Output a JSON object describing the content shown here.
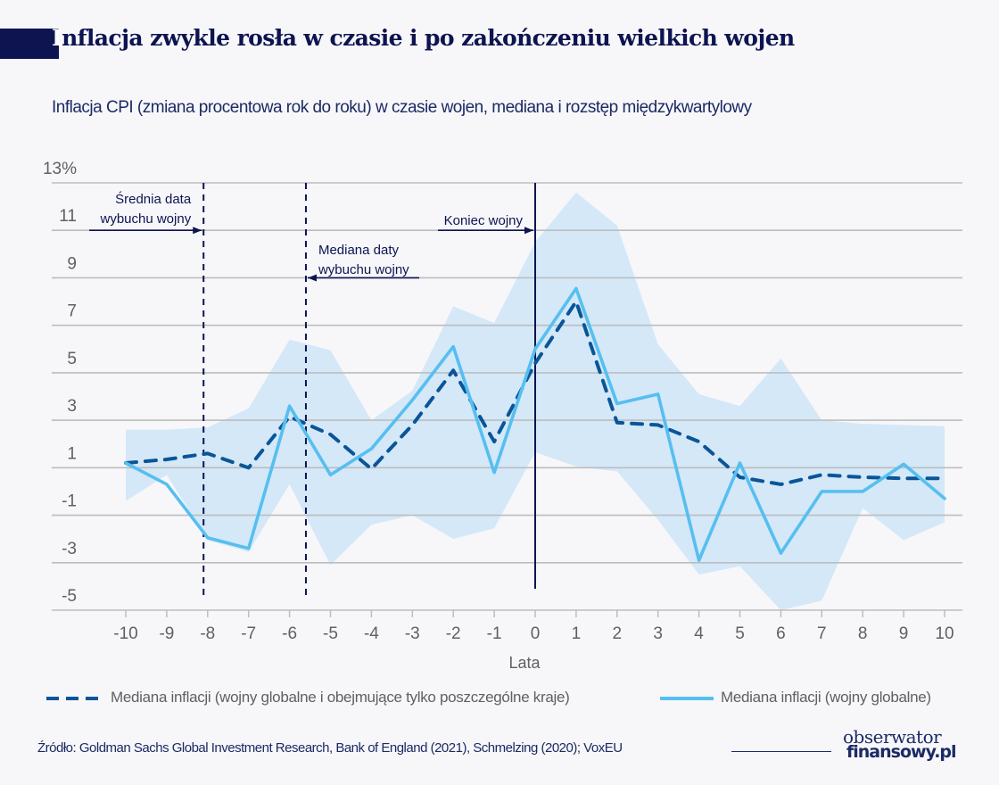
{
  "header": {
    "title_first_letter": "I",
    "title_rest": "nflacja zwykle rosła w czasie i po zakończeniu wielkich wojen",
    "subtitle": "Inflacja CPI (zmiana procentowa rok do roku) w czasie wojen, mediana i rozstęp międzykwartylowy"
  },
  "colors": {
    "title": "#0d1450",
    "band": "#d4e8f8",
    "solid_line": "#56bff0",
    "dashed_line": "#0a5598",
    "vertical_markers": "#0d1450",
    "grid": "#bdbdbd",
    "axis_text": "#606060"
  },
  "chart_data": {
    "type": "line",
    "title": "Inflacja zwykle rosła w czasie i po zakończeniu wielkich wojen",
    "subtitle": "Inflacja CPI (zmiana procentowa rok do roku) w czasie wojen, mediana i rozstęp międzykwartylowy",
    "xlabel": "Lata",
    "ylabel": "",
    "x": [
      -10,
      -9,
      -8,
      -7,
      -6,
      -5,
      -4,
      -3,
      -2,
      -1,
      0,
      1,
      2,
      3,
      4,
      5,
      6,
      7,
      8,
      9,
      10
    ],
    "x_tick_labels": [
      "-10",
      "-9",
      "-8",
      "-7",
      "-6",
      "-5",
      "-4",
      "-3",
      "-2",
      "-1",
      "0",
      "1",
      "2",
      "3",
      "4",
      "5",
      "6",
      "7",
      "8",
      "9",
      "10"
    ],
    "ylim": [
      -5,
      13
    ],
    "y_ticks": [
      13,
      11,
      9,
      7,
      5,
      3,
      1,
      -1,
      -3,
      -5
    ],
    "y_tick_labels": [
      "13%",
      "11",
      "9",
      "7",
      "5",
      "3",
      "1",
      "-1",
      "-3",
      "-5"
    ],
    "grid": true,
    "series": [
      {
        "name": "Mediana inflacji (wojny globalne i obejmujące tylko poszczególne kraje)",
        "style": "dashed",
        "values": [
          1.2,
          1.35,
          1.6,
          1.0,
          3.15,
          2.4,
          0.95,
          2.8,
          5.1,
          2.1,
          5.4,
          8.0,
          2.9,
          2.8,
          2.1,
          0.6,
          0.3,
          0.7,
          0.6,
          0.55,
          0.55
        ]
      },
      {
        "name": "Mediana inflacji (wojny globalne)",
        "style": "solid",
        "values": [
          1.2,
          0.3,
          -1.95,
          -2.4,
          3.6,
          0.7,
          1.8,
          3.85,
          6.1,
          0.8,
          6.0,
          8.55,
          3.7,
          4.1,
          -2.9,
          1.2,
          -2.6,
          0.0,
          0.0,
          1.15,
          -0.3
        ]
      }
    ],
    "interquartile_range": {
      "name": "Rozstęp międzykwartylowy",
      "upper": [
        2.6,
        2.6,
        2.7,
        3.5,
        6.4,
        5.95,
        3.0,
        4.25,
        7.8,
        7.1,
        10.5,
        12.6,
        11.2,
        6.2,
        4.1,
        3.6,
        5.6,
        3.0,
        2.85,
        2.8,
        2.75
      ],
      "lower": [
        -0.4,
        0.7,
        -2.05,
        -2.55,
        0.3,
        -3.1,
        -1.4,
        -1.0,
        -2.0,
        -1.55,
        1.65,
        1.05,
        0.85,
        -1.2,
        -3.5,
        -3.15,
        -5.0,
        -4.6,
        -0.7,
        -2.05,
        -1.3
      ]
    },
    "annotations": [
      {
        "x": -8.1,
        "style": "dashed",
        "label_lines": [
          "Średnia data",
          "wybuchu wojny"
        ],
        "arrow": "right"
      },
      {
        "x": -5.6,
        "style": "dashed",
        "label_lines": [
          "Mediana daty",
          "wybuchu wojny"
        ],
        "arrow": "left"
      },
      {
        "x": 0,
        "style": "solid",
        "label_lines": [
          "Koniec wojny"
        ],
        "arrow": "right"
      }
    ],
    "legend": [
      {
        "label": "Mediana inflacji (wojny globalne i obejmujące tylko poszczególne kraje)",
        "style": "dashed"
      },
      {
        "label": "Mediana inflacji (wojny globalne)",
        "style": "solid"
      }
    ],
    "legend_position": "bottom"
  },
  "footer": {
    "source": "Źródło: Goldman Sachs Global Investment Research, Bank of England (2021), Schmelzing (2020); VoxEU",
    "logo_line1": "obserwator",
    "logo_line2": "finansowy.pl"
  }
}
